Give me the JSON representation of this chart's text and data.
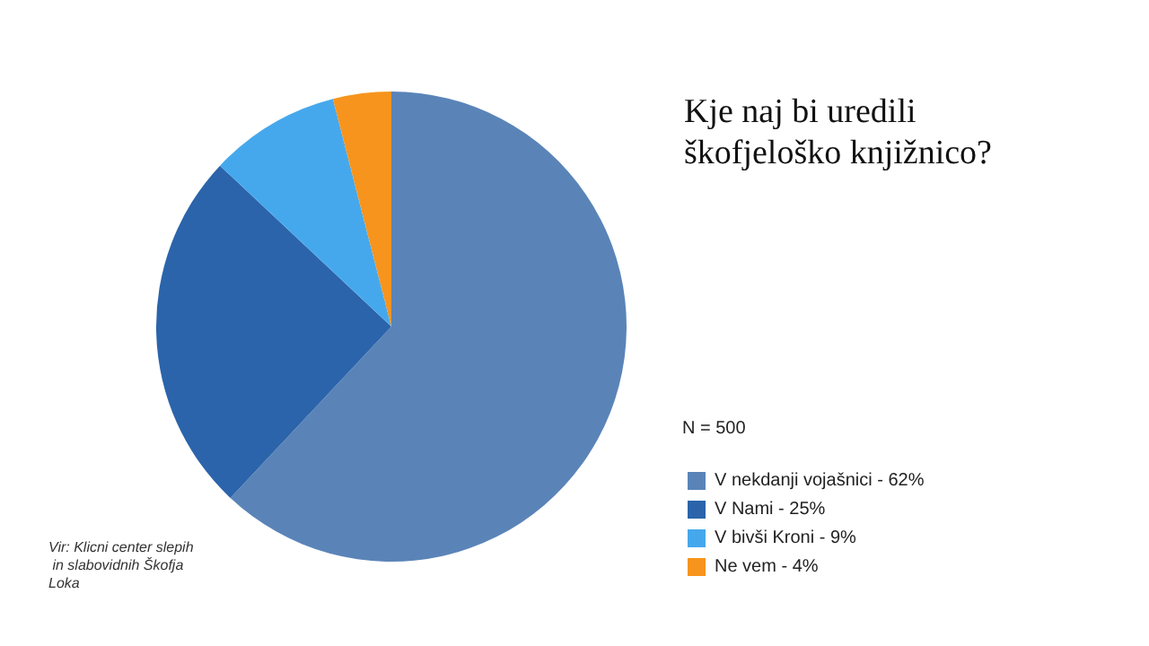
{
  "chart_data": {
    "type": "pie",
    "title": "Kje naj bi uredili škofjeloško knjižnico?",
    "categories": [
      "V nekdanji vojašnici - 62%",
      "V Nami - 25%",
      "V bivši Kroni - 9%",
      "Ne vem - 4%"
    ],
    "values": [
      62,
      25,
      9,
      4
    ],
    "colors": [
      "#5a84b8",
      "#2b64aa",
      "#46a8ec",
      "#f7941d"
    ],
    "legend": "bottom right",
    "annotations": [
      "N = 500",
      "Vir: Klicni center slepih in slabovidnih Škofja Loka"
    ]
  }
}
